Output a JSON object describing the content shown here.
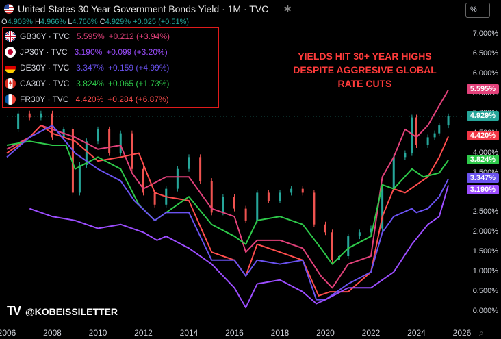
{
  "header": {
    "title": "United States 30 Year Government Bonds Yield · 1M · TVC",
    "settings_icon": "gear-icon",
    "ohlc": {
      "o_label": "O",
      "o": "4.903%",
      "h_label": "H",
      "h": "4.966%",
      "l_label": "L",
      "l": "4.766%",
      "c_label": "C",
      "c": "4.929%",
      "change": "+0.025 (+0.51%)"
    }
  },
  "unit_selector": "%",
  "legend": [
    {
      "name": "GB30Y · TVC",
      "value": "5.595%",
      "change": "+0.212 (+3.94%)",
      "color": "#e2417a",
      "flag": "uk-flag-icon"
    },
    {
      "name": "JP30Y · TVC",
      "value": "3.190%",
      "change": "+0.099 (+3.20%)",
      "color": "#9c4dff",
      "flag": "japan-flag-icon"
    },
    {
      "name": "DE30Y · TVC",
      "value": "3.347%",
      "change": "+0.159 (+4.99%)",
      "color": "#6a52f0",
      "flag": "germany-flag-icon"
    },
    {
      "name": "CA30Y · TVC",
      "value": "3.824%",
      "change": "+0.065 (+1.73%)",
      "color": "#2ec94a",
      "flag": "canada-flag-icon"
    },
    {
      "name": "FR30Y · TVC",
      "value": "4.420%",
      "change": "+0.284 (+6.87%)",
      "color": "#ff4d4d",
      "flag": "france-flag-icon"
    }
  ],
  "annotation": [
    "YIELDS HIT 30+ YEAR HIGHS",
    "DESPITE AGGRESIVE GLOBAL",
    "RATE CUTS"
  ],
  "watermark": {
    "logo": "TV",
    "text": "@KOBEISSILETTER"
  },
  "price_badges": [
    {
      "label": "5.595%",
      "value": 5.595,
      "color": "#e2417a"
    },
    {
      "label": "4.929%",
      "value": 4.929,
      "color": "#26a69a"
    },
    {
      "label": "4.420%",
      "value": 4.42,
      "color": "#f23645"
    },
    {
      "label": "3.824%",
      "value": 3.824,
      "color": "#2ec94a"
    },
    {
      "label": "3.347%",
      "value": 3.347,
      "color": "#6a52f0"
    },
    {
      "label": "3.190%",
      "value": 3.19,
      "color": "#9c4dff"
    }
  ],
  "chart_data": {
    "type": "line",
    "y_ticks": [
      "7.000%",
      "6.500%",
      "6.000%",
      "5.500%",
      "5.000%",
      "4.500%",
      "4.000%",
      "3.500%",
      "3.000%",
      "2.500%",
      "2.000%",
      "1.500%",
      "1.000%",
      "0.500%",
      "0.000%"
    ],
    "x_ticks": [
      "2006",
      "2008",
      "2010",
      "2012",
      "2014",
      "2016",
      "2018",
      "2020",
      "2022",
      "2024",
      "2026"
    ],
    "ylim": [
      0,
      7
    ],
    "xlim": [
      2006.0,
      2026.0
    ],
    "series": [
      {
        "name": "United States 30 Year Government Bonds Yield",
        "kind": "candles",
        "color": "#26a69a",
        "x": [
          2006.0,
          2006.5,
          2007.0,
          2007.5,
          2008.0,
          2008.5,
          2008.9,
          2009.2,
          2009.5,
          2010.0,
          2010.5,
          2011.0,
          2011.5,
          2012.0,
          2012.5,
          2013.0,
          2013.5,
          2014.0,
          2014.5,
          2015.0,
          2015.5,
          2016.0,
          2016.5,
          2017.0,
          2017.5,
          2018.0,
          2018.5,
          2019.0,
          2019.5,
          2020.0,
          2020.3,
          2020.6,
          2021.0,
          2021.5,
          2022.0,
          2022.5,
          2023.0,
          2023.5,
          2023.8,
          2024.0,
          2024.5,
          2024.8,
          2025.0,
          2025.4
        ],
        "y": [
          4.6,
          5.0,
          4.9,
          5.0,
          4.4,
          4.6,
          3.0,
          3.7,
          4.3,
          4.6,
          4.0,
          4.5,
          3.6,
          3.0,
          2.7,
          3.1,
          3.6,
          3.9,
          3.3,
          2.5,
          2.9,
          2.6,
          2.3,
          3.0,
          2.8,
          3.0,
          3.1,
          3.0,
          2.2,
          2.0,
          1.3,
          1.4,
          1.9,
          2.0,
          2.1,
          3.1,
          3.9,
          4.0,
          4.9,
          4.2,
          4.4,
          4.5,
          4.7,
          4.93
        ]
      },
      {
        "name": "GB30Y",
        "color": "#e2417a",
        "x": [
          2006.0,
          2007.0,
          2007.5,
          2008.0,
          2008.5,
          2009.0,
          2010.0,
          2011.0,
          2011.5,
          2012.0,
          2013.0,
          2014.0,
          2015.0,
          2016.0,
          2016.5,
          2017.0,
          2018.0,
          2019.0,
          2019.8,
          2020.3,
          2021.0,
          2022.0,
          2022.5,
          2023.0,
          2023.5,
          2024.0,
          2024.5,
          2025.0,
          2025.4
        ],
        "y": [
          4.1,
          4.4,
          4.7,
          4.6,
          4.5,
          4.4,
          4.1,
          4.2,
          3.5,
          3.1,
          3.4,
          3.4,
          2.6,
          2.4,
          1.5,
          1.8,
          1.8,
          1.6,
          0.9,
          0.6,
          1.2,
          1.4,
          3.4,
          3.9,
          4.6,
          4.4,
          4.7,
          5.2,
          5.595
        ]
      },
      {
        "name": "FR30Y",
        "color": "#ff4d4d",
        "x": [
          2006.0,
          2007.0,
          2007.5,
          2008.0,
          2009.0,
          2010.0,
          2011.0,
          2011.8,
          2012.5,
          2013.0,
          2014.0,
          2015.0,
          2016.0,
          2016.5,
          2017.0,
          2018.0,
          2019.0,
          2019.7,
          2020.2,
          2021.0,
          2022.0,
          2022.5,
          2023.0,
          2023.5,
          2024.0,
          2024.5,
          2025.0,
          2025.4
        ],
        "y": [
          4.0,
          4.4,
          4.7,
          4.5,
          4.3,
          3.8,
          3.9,
          4.0,
          3.0,
          2.9,
          2.8,
          1.5,
          1.3,
          0.9,
          1.7,
          1.5,
          1.3,
          0.4,
          0.5,
          0.5,
          1.0,
          2.4,
          3.1,
          3.0,
          3.2,
          3.4,
          3.9,
          4.42
        ]
      },
      {
        "name": "CA30Y",
        "color": "#2ec94a",
        "x": [
          2006.0,
          2007.0,
          2008.0,
          2008.6,
          2009.0,
          2010.0,
          2011.0,
          2011.8,
          2012.5,
          2013.0,
          2014.0,
          2015.0,
          2016.0,
          2016.5,
          2017.0,
          2018.0,
          2019.0,
          2019.8,
          2020.3,
          2021.0,
          2022.0,
          2022.5,
          2023.0,
          2023.8,
          2024.3,
          2025.0,
          2025.4
        ],
        "y": [
          4.2,
          4.3,
          4.2,
          4.2,
          3.6,
          3.9,
          3.6,
          2.7,
          2.3,
          2.5,
          2.9,
          2.2,
          1.9,
          1.7,
          2.3,
          2.4,
          2.2,
          1.6,
          1.2,
          1.6,
          1.9,
          3.2,
          3.1,
          3.6,
          3.4,
          3.5,
          3.824
        ]
      },
      {
        "name": "DE30Y",
        "color": "#6a52f0",
        "x": [
          2006.0,
          2007.0,
          2008.0,
          2009.0,
          2010.0,
          2011.0,
          2011.6,
          2012.5,
          2013.0,
          2014.0,
          2015.0,
          2016.0,
          2016.5,
          2017.0,
          2018.0,
          2019.0,
          2019.6,
          2020.0,
          2021.0,
          2022.0,
          2022.5,
          2023.0,
          2023.8,
          2024.0,
          2024.5,
          2025.0,
          2025.4
        ],
        "y": [
          3.9,
          4.4,
          4.7,
          4.0,
          3.6,
          3.3,
          2.8,
          2.3,
          2.5,
          2.5,
          1.3,
          1.3,
          0.9,
          1.3,
          1.2,
          1.3,
          0.3,
          0.3,
          0.7,
          1.0,
          2.0,
          2.4,
          2.6,
          2.5,
          2.6,
          2.9,
          3.347
        ]
      },
      {
        "name": "JP30Y",
        "color": "#9c4dff",
        "x": [
          2007.0,
          2008.0,
          2009.0,
          2010.0,
          2011.0,
          2012.0,
          2012.6,
          2013.0,
          2014.0,
          2015.0,
          2016.0,
          2016.5,
          2017.0,
          2018.0,
          2019.0,
          2019.6,
          2020.0,
          2021.0,
          2022.0,
          2023.0,
          2023.8,
          2024.5,
          2025.0,
          2025.4
        ],
        "y": [
          2.6,
          2.4,
          2.3,
          2.1,
          2.2,
          2.0,
          1.8,
          1.9,
          1.6,
          1.2,
          0.6,
          0.1,
          0.7,
          0.8,
          0.5,
          0.2,
          0.3,
          0.6,
          0.6,
          1.0,
          1.7,
          2.2,
          2.4,
          3.19
        ]
      }
    ]
  }
}
